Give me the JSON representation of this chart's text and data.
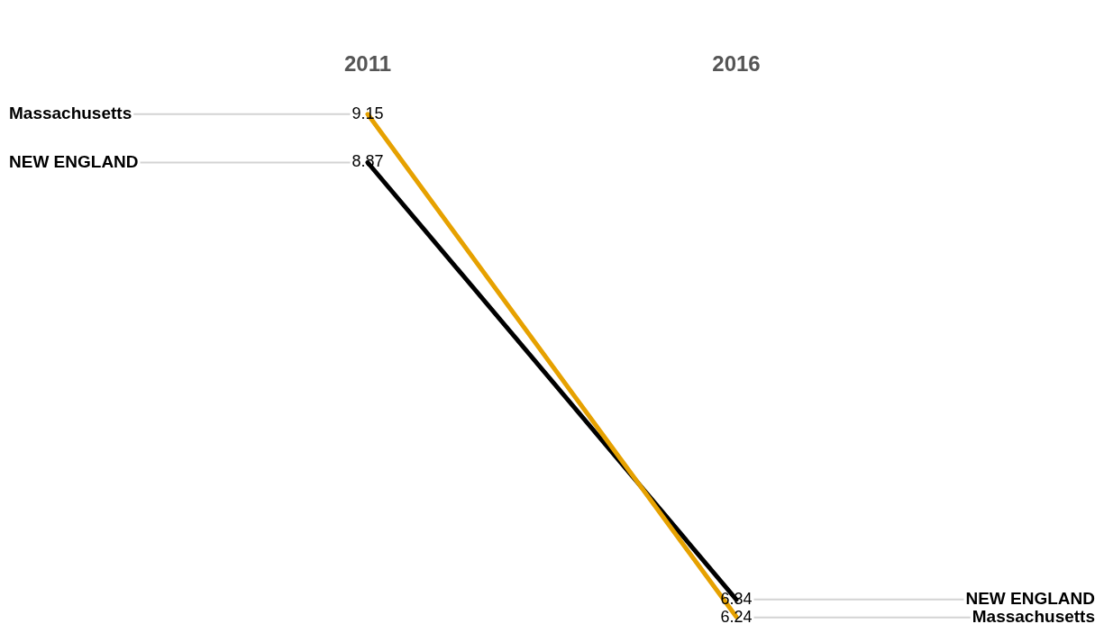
{
  "chart_data": {
    "type": "line",
    "categories": [
      "2011",
      "2016"
    ],
    "series": [
      {
        "name": "Massachusetts",
        "color": "#e6a100",
        "values": [
          9.15,
          6.24
        ]
      },
      {
        "name": "NEW ENGLAND",
        "color": "#000000",
        "values": [
          8.87,
          6.34
        ]
      }
    ],
    "data_labels": true,
    "legend": false,
    "grid": false,
    "marker": "none",
    "tick_labels": "x"
  }
}
